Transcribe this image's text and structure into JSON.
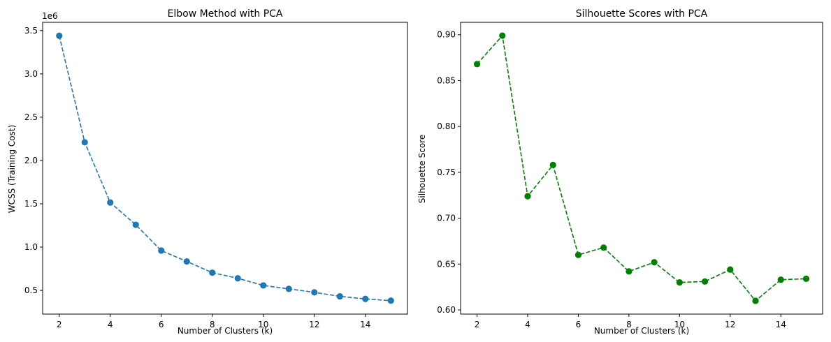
{
  "chart_data": [
    {
      "type": "line",
      "title": "Elbow Method with PCA",
      "xlabel": "Number of Clusters (k)",
      "ylabel": "WCSS (Training Cost)",
      "y_offset_label": "1e6",
      "x": [
        2,
        3,
        4,
        5,
        6,
        7,
        8,
        9,
        10,
        11,
        12,
        13,
        14,
        15
      ],
      "series": [
        {
          "values": [
            3440000,
            2210000,
            1515000,
            1258000,
            960000,
            835000,
            705000,
            640000,
            558000,
            518000,
            478000,
            432000,
            402000,
            382000
          ],
          "color": "#1f77b4",
          "line_style": "dashed",
          "marker": "circle"
        }
      ],
      "xlim": [
        1.35,
        15.65
      ],
      "ylim": [
        227000,
        3595000
      ],
      "x_ticks": [
        2,
        4,
        6,
        8,
        10,
        12,
        14
      ],
      "x_tick_labels": [
        "2",
        "4",
        "6",
        "8",
        "10",
        "12",
        "14"
      ],
      "y_ticks": [
        500000,
        1000000,
        1500000,
        2000000,
        2500000,
        3000000,
        3500000
      ],
      "y_tick_labels": [
        "0.5",
        "1.0",
        "1.5",
        "2.0",
        "2.5",
        "3.0",
        "3.5"
      ],
      "grid": false,
      "legend": "none"
    },
    {
      "type": "line",
      "title": "Silhouette Scores with PCA",
      "xlabel": "Number of Clusters (k)",
      "ylabel": "Silhouette Score",
      "x": [
        2,
        3,
        4,
        5,
        6,
        7,
        8,
        9,
        10,
        11,
        12,
        13,
        14,
        15
      ],
      "series": [
        {
          "values": [
            0.868,
            0.899,
            0.724,
            0.758,
            0.66,
            0.668,
            0.642,
            0.652,
            0.63,
            0.631,
            0.644,
            0.61,
            0.633,
            0.634
          ],
          "color": "#008000",
          "line_style": "dashed",
          "marker": "circle"
        }
      ],
      "xlim": [
        1.35,
        15.65
      ],
      "ylim": [
        0.5955,
        0.9135
      ],
      "x_ticks": [
        2,
        4,
        6,
        8,
        10,
        12,
        14
      ],
      "x_tick_labels": [
        "2",
        "4",
        "6",
        "8",
        "10",
        "12",
        "14"
      ],
      "y_ticks": [
        0.6,
        0.65,
        0.7,
        0.75,
        0.8,
        0.85,
        0.9
      ],
      "y_tick_labels": [
        "0.60",
        "0.65",
        "0.70",
        "0.75",
        "0.80",
        "0.85",
        "0.90"
      ],
      "grid": false,
      "legend": "none"
    }
  ]
}
